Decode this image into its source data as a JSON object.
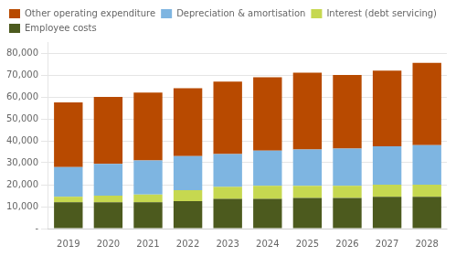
{
  "chart_data": {
    "type": "bar",
    "stacked": true,
    "categories": [
      "2019",
      "2020",
      "2021",
      "2022",
      "2023",
      "2024",
      "2025",
      "2026",
      "2027",
      "2028"
    ],
    "series": [
      {
        "name": "Employee costs",
        "color": "#4c5a1e",
        "values": [
          12000,
          12000,
          12000,
          12500,
          13500,
          13500,
          14000,
          14000,
          14500,
          14500
        ]
      },
      {
        "name": "Interest (debt servicing)",
        "color": "#c6d850",
        "values": [
          2500,
          3000,
          3500,
          5000,
          5500,
          6000,
          5500,
          5500,
          5500,
          5500
        ]
      },
      {
        "name": "Depreciation & amortisation",
        "color": "#7eb5e1",
        "values": [
          13500,
          14500,
          15500,
          15500,
          15000,
          16000,
          16500,
          17000,
          17500,
          18000
        ]
      },
      {
        "name": "Other operating expenditure",
        "color": "#b84a00",
        "values": [
          29500,
          30500,
          31000,
          31000,
          33000,
          33500,
          35000,
          33500,
          34500,
          37500
        ]
      }
    ],
    "ylim": [
      0,
      85000
    ],
    "yticks": [
      {
        "value": 0,
        "label": "-"
      },
      {
        "value": 10000,
        "label": "10,000"
      },
      {
        "value": 20000,
        "label": "20,000"
      },
      {
        "value": 30000,
        "label": "30,000"
      },
      {
        "value": 40000,
        "label": "40,000"
      },
      {
        "value": 50000,
        "label": "50,000"
      },
      {
        "value": 60000,
        "label": "60,000"
      },
      {
        "value": 70000,
        "label": "70,000"
      },
      {
        "value": 80000,
        "label": "80,000"
      }
    ],
    "grid": true,
    "legend": "upper left"
  }
}
